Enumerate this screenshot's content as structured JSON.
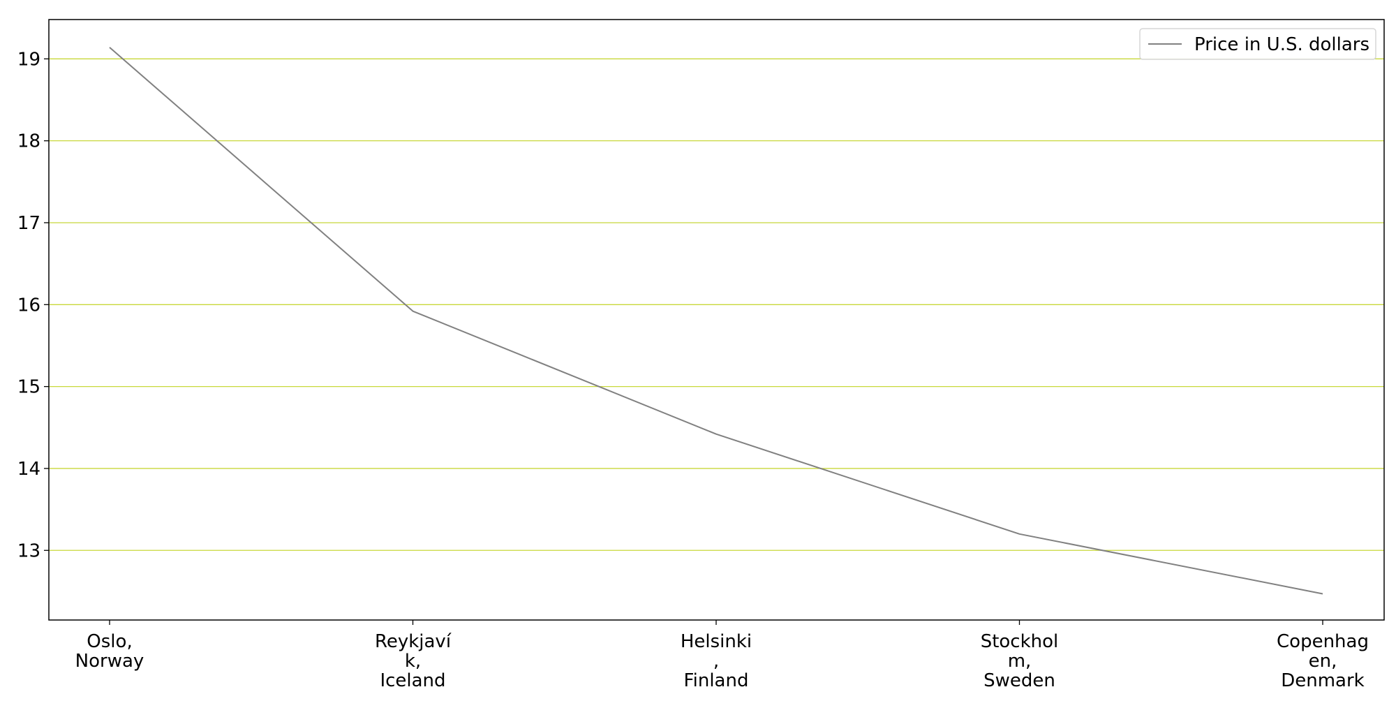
{
  "chart_data": {
    "type": "line",
    "title": "",
    "xlabel": "",
    "ylabel": "",
    "categories": [
      [
        "Oslo,",
        "Norway"
      ],
      [
        "Reykjaví",
        "k,",
        "Iceland"
      ],
      [
        "Helsinki",
        ",",
        "Finland"
      ],
      [
        "Stockhol",
        "m,",
        "Sweden"
      ],
      [
        "Copenhag",
        "en,",
        "Denmark"
      ]
    ],
    "series": [
      {
        "name": "Price in U.S. dollars",
        "values": [
          19.14,
          15.92,
          14.42,
          13.2,
          12.47
        ]
      }
    ],
    "ylim": [
      12.15,
      19.48
    ],
    "yticks": [
      13,
      14,
      15,
      16,
      17,
      18,
      19
    ],
    "grid": {
      "axis": "y",
      "visible": true,
      "color": "#c8d83a"
    },
    "line_color": "#808080",
    "legend": {
      "position": "top-right",
      "label": "Price in U.S. dollars"
    }
  }
}
